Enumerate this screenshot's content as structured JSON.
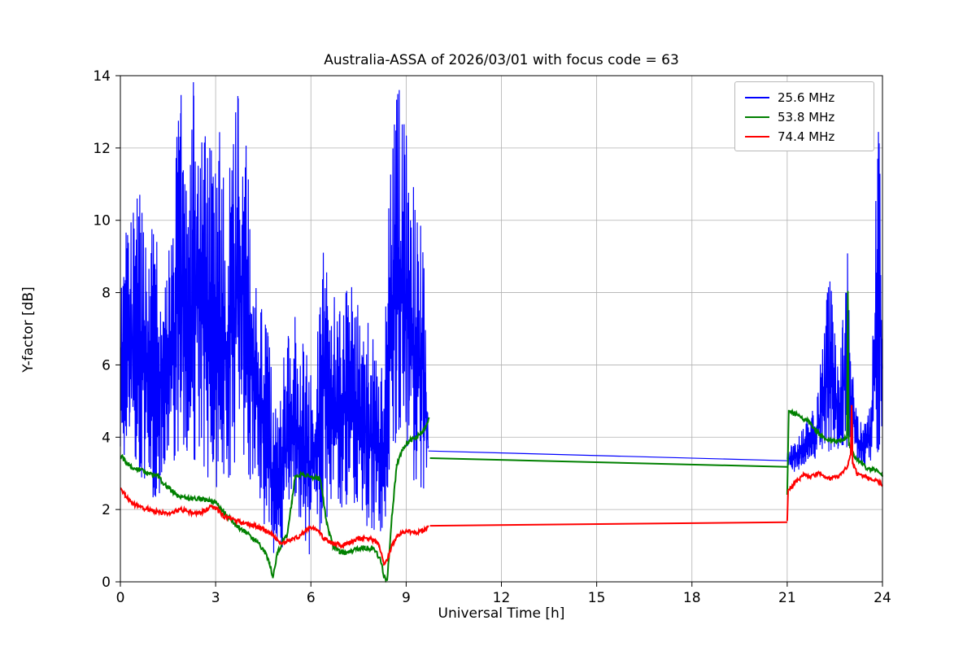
{
  "chart_data": {
    "type": "line",
    "title": "Australia-ASSA of 2026/03/01 with focus code = 63",
    "xlabel": "Universal Time [h]",
    "ylabel": "Y-factor [dB]",
    "xlim": [
      0,
      24
    ],
    "ylim": [
      0,
      14
    ],
    "xticks": [
      "0",
      "3",
      "6",
      "9",
      "12",
      "15",
      "18",
      "21",
      "24"
    ],
    "yticks": [
      "0",
      "2",
      "4",
      "6",
      "8",
      "10",
      "12",
      "14"
    ],
    "grid": true,
    "grid_color": "#b0b0b0",
    "legend_position": "upper right",
    "noise_seed": 20260301,
    "series": [
      {
        "name": "25.6 MHz",
        "color": "#0000ff",
        "width": 1.2,
        "segments": [
          {
            "mode": "band",
            "points": [
              [
                0.0,
                3.3,
                9.3
              ],
              [
                0.3,
                3.8,
                10.2
              ],
              [
                0.6,
                3.0,
                10.8
              ],
              [
                0.9,
                2.2,
                9.0
              ],
              [
                1.1,
                1.0,
                11.2
              ],
              [
                1.3,
                3.0,
                8.5
              ],
              [
                1.6,
                3.2,
                9.5
              ],
              [
                1.9,
                3.4,
                14.2
              ],
              [
                2.1,
                3.2,
                10.5
              ],
              [
                2.3,
                3.4,
                14.2
              ],
              [
                2.6,
                3.0,
                13.5
              ],
              [
                2.9,
                2.6,
                12.0
              ],
              [
                3.1,
                2.4,
                12.8
              ],
              [
                3.4,
                2.8,
                11.0
              ],
              [
                3.7,
                3.0,
                14.2
              ],
              [
                3.9,
                3.2,
                14.2
              ],
              [
                4.1,
                2.6,
                10.0
              ],
              [
                4.4,
                2.0,
                8.0
              ],
              [
                4.65,
                0.8,
                7.0
              ],
              [
                4.9,
                0.4,
                5.2
              ],
              [
                5.1,
                0.3,
                6.3
              ],
              [
                5.3,
                1.5,
                7.0
              ],
              [
                5.5,
                2.2,
                7.6
              ],
              [
                5.75,
                1.2,
                6.8
              ],
              [
                5.95,
                0.5,
                6.4
              ],
              [
                6.1,
                2.6,
                4.2
              ],
              [
                6.25,
                1.0,
                7.8
              ],
              [
                6.45,
                1.5,
                10.4
              ],
              [
                6.6,
                2.0,
                8.2
              ],
              [
                6.9,
                2.0,
                8.0
              ],
              [
                7.2,
                1.8,
                8.6
              ],
              [
                7.5,
                2.0,
                8.0
              ],
              [
                7.8,
                1.4,
                7.2
              ],
              [
                8.05,
                1.2,
                6.6
              ],
              [
                8.3,
                1.0,
                6.0
              ],
              [
                8.5,
                2.6,
                12.6
              ],
              [
                8.7,
                3.6,
                14.2
              ],
              [
                8.9,
                3.4,
                13.4
              ],
              [
                9.1,
                3.0,
                12.0
              ],
              [
                9.35,
                2.2,
                10.2
              ],
              [
                9.55,
                2.4,
                10.3
              ],
              [
                9.7,
                3.5,
                3.8
              ]
            ]
          },
          {
            "mode": "line",
            "points": [
              [
                9.7,
                3.62
              ],
              [
                21.0,
                3.35
              ]
            ]
          },
          {
            "mode": "band",
            "points": [
              [
                21.0,
                3.25,
                3.6
              ],
              [
                21.2,
                3.0,
                3.9
              ],
              [
                21.4,
                3.1,
                4.2
              ],
              [
                21.7,
                3.3,
                4.6
              ],
              [
                21.95,
                3.4,
                5.2
              ],
              [
                22.15,
                3.5,
                7.0
              ],
              [
                22.3,
                3.6,
                8.6
              ],
              [
                22.45,
                3.6,
                8.2
              ],
              [
                22.6,
                3.5,
                6.2
              ],
              [
                22.75,
                3.5,
                7.4
              ],
              [
                22.9,
                3.6,
                9.2
              ],
              [
                23.05,
                3.4,
                6.0
              ],
              [
                23.2,
                3.3,
                4.6
              ],
              [
                23.45,
                3.2,
                4.4
              ],
              [
                23.65,
                3.3,
                5.0
              ],
              [
                23.85,
                3.5,
                13.3
              ],
              [
                24.0,
                3.6,
                10.0
              ]
            ]
          }
        ]
      },
      {
        "name": "53.8 MHz",
        "color": "#008000",
        "width": 2.0,
        "segments": [
          {
            "mode": "jitter",
            "amp": 0.07,
            "points": [
              [
                0.0,
                3.5
              ],
              [
                0.1,
                3.4
              ],
              [
                0.3,
                3.2
              ],
              [
                0.6,
                3.1
              ],
              [
                0.9,
                3.0
              ],
              [
                1.2,
                2.9
              ],
              [
                1.5,
                2.6
              ],
              [
                1.8,
                2.4
              ],
              [
                2.1,
                2.3
              ],
              [
                2.4,
                2.3
              ],
              [
                2.7,
                2.25
              ],
              [
                3.0,
                2.2
              ],
              [
                3.3,
                1.9
              ],
              [
                3.6,
                1.6
              ],
              [
                3.9,
                1.4
              ],
              [
                4.2,
                1.2
              ],
              [
                4.5,
                0.9
              ],
              [
                4.7,
                0.5
              ],
              [
                4.8,
                0.15
              ],
              [
                4.95,
                0.8
              ],
              [
                5.1,
                1.1
              ],
              [
                5.25,
                1.3
              ],
              [
                5.4,
                2.2
              ],
              [
                5.5,
                2.9
              ],
              [
                5.7,
                3.0
              ],
              [
                5.9,
                2.95
              ],
              [
                6.1,
                2.9
              ],
              [
                6.3,
                2.85
              ],
              [
                6.5,
                1.6
              ],
              [
                6.7,
                1.0
              ],
              [
                6.9,
                0.85
              ],
              [
                7.1,
                0.8
              ],
              [
                7.4,
                0.9
              ],
              [
                7.7,
                0.95
              ],
              [
                8.0,
                0.9
              ],
              [
                8.2,
                0.6
              ],
              [
                8.3,
                0.15
              ],
              [
                8.4,
                0.05
              ],
              [
                8.55,
                1.8
              ],
              [
                8.7,
                3.2
              ],
              [
                8.9,
                3.7
              ],
              [
                9.1,
                3.9
              ],
              [
                9.3,
                4.0
              ],
              [
                9.5,
                4.15
              ],
              [
                9.65,
                4.35
              ],
              [
                9.72,
                4.5
              ]
            ]
          },
          {
            "mode": "line",
            "points": [
              [
                9.75,
                3.42
              ],
              [
                21.0,
                3.18
              ]
            ]
          },
          {
            "mode": "jitter",
            "amp": 0.06,
            "points": [
              [
                21.0,
                2.4
              ],
              [
                21.05,
                4.75
              ],
              [
                21.2,
                4.65
              ],
              [
                21.35,
                4.6
              ],
              [
                21.5,
                4.5
              ],
              [
                21.65,
                4.45
              ],
              [
                21.8,
                4.3
              ],
              [
                22.0,
                4.1
              ],
              [
                22.2,
                3.95
              ],
              [
                22.4,
                3.9
              ],
              [
                22.6,
                3.9
              ],
              [
                22.8,
                3.95
              ],
              [
                22.88,
                4.0
              ],
              [
                22.91,
                8.0
              ],
              [
                22.94,
                3.8
              ],
              [
                23.1,
                3.5
              ],
              [
                23.3,
                3.3
              ],
              [
                23.5,
                3.15
              ],
              [
                23.7,
                3.1
              ],
              [
                23.85,
                3.05
              ],
              [
                24.0,
                2.95
              ]
            ]
          }
        ]
      },
      {
        "name": "74.4 MHz",
        "color": "#ff0000",
        "width": 2.0,
        "segments": [
          {
            "mode": "jitter",
            "amp": 0.06,
            "points": [
              [
                0.0,
                2.6
              ],
              [
                0.15,
                2.4
              ],
              [
                0.3,
                2.25
              ],
              [
                0.5,
                2.1
              ],
              [
                0.7,
                2.05
              ],
              [
                0.9,
                2.0
              ],
              [
                1.1,
                1.95
              ],
              [
                1.3,
                1.9
              ],
              [
                1.5,
                1.9
              ],
              [
                1.7,
                1.95
              ],
              [
                1.9,
                2.0
              ],
              [
                2.1,
                1.95
              ],
              [
                2.3,
                1.9
              ],
              [
                2.5,
                1.9
              ],
              [
                2.7,
                2.0
              ],
              [
                2.9,
                2.1
              ],
              [
                3.05,
                2.0
              ],
              [
                3.2,
                1.85
              ],
              [
                3.4,
                1.75
              ],
              [
                3.6,
                1.7
              ],
              [
                3.8,
                1.65
              ],
              [
                4.0,
                1.6
              ],
              [
                4.2,
                1.55
              ],
              [
                4.4,
                1.5
              ],
              [
                4.6,
                1.4
              ],
              [
                4.8,
                1.3
              ],
              [
                5.0,
                1.1
              ],
              [
                5.2,
                1.1
              ],
              [
                5.4,
                1.15
              ],
              [
                5.6,
                1.25
              ],
              [
                5.8,
                1.4
              ],
              [
                6.0,
                1.5
              ],
              [
                6.2,
                1.45
              ],
              [
                6.4,
                1.2
              ],
              [
                6.6,
                1.1
              ],
              [
                6.8,
                1.05
              ],
              [
                7.0,
                1.0
              ],
              [
                7.2,
                1.1
              ],
              [
                7.4,
                1.15
              ],
              [
                7.6,
                1.2
              ],
              [
                7.8,
                1.2
              ],
              [
                8.0,
                1.15
              ],
              [
                8.15,
                1.0
              ],
              [
                8.3,
                0.5
              ],
              [
                8.4,
                0.6
              ],
              [
                8.55,
                1.0
              ],
              [
                8.7,
                1.25
              ],
              [
                8.9,
                1.35
              ],
              [
                9.1,
                1.4
              ],
              [
                9.3,
                1.35
              ],
              [
                9.5,
                1.4
              ],
              [
                9.7,
                1.5
              ]
            ]
          },
          {
            "mode": "line",
            "points": [
              [
                9.75,
                1.55
              ],
              [
                21.0,
                1.65
              ]
            ]
          },
          {
            "mode": "jitter",
            "amp": 0.05,
            "points": [
              [
                21.0,
                1.65
              ],
              [
                21.03,
                2.55
              ],
              [
                21.1,
                2.6
              ],
              [
                21.25,
                2.75
              ],
              [
                21.4,
                2.85
              ],
              [
                21.55,
                3.0
              ],
              [
                21.7,
                2.9
              ],
              [
                21.85,
                2.95
              ],
              [
                22.0,
                3.0
              ],
              [
                22.15,
                2.9
              ],
              [
                22.3,
                2.85
              ],
              [
                22.45,
                2.9
              ],
              [
                22.6,
                2.9
              ],
              [
                22.75,
                3.05
              ],
              [
                22.9,
                3.2
              ],
              [
                23.0,
                3.5
              ],
              [
                23.03,
                4.9
              ],
              [
                23.06,
                3.3
              ],
              [
                23.2,
                3.0
              ],
              [
                23.35,
                2.95
              ],
              [
                23.5,
                2.9
              ],
              [
                23.65,
                2.85
              ],
              [
                23.8,
                2.8
              ],
              [
                24.0,
                2.7
              ]
            ]
          }
        ]
      }
    ]
  }
}
